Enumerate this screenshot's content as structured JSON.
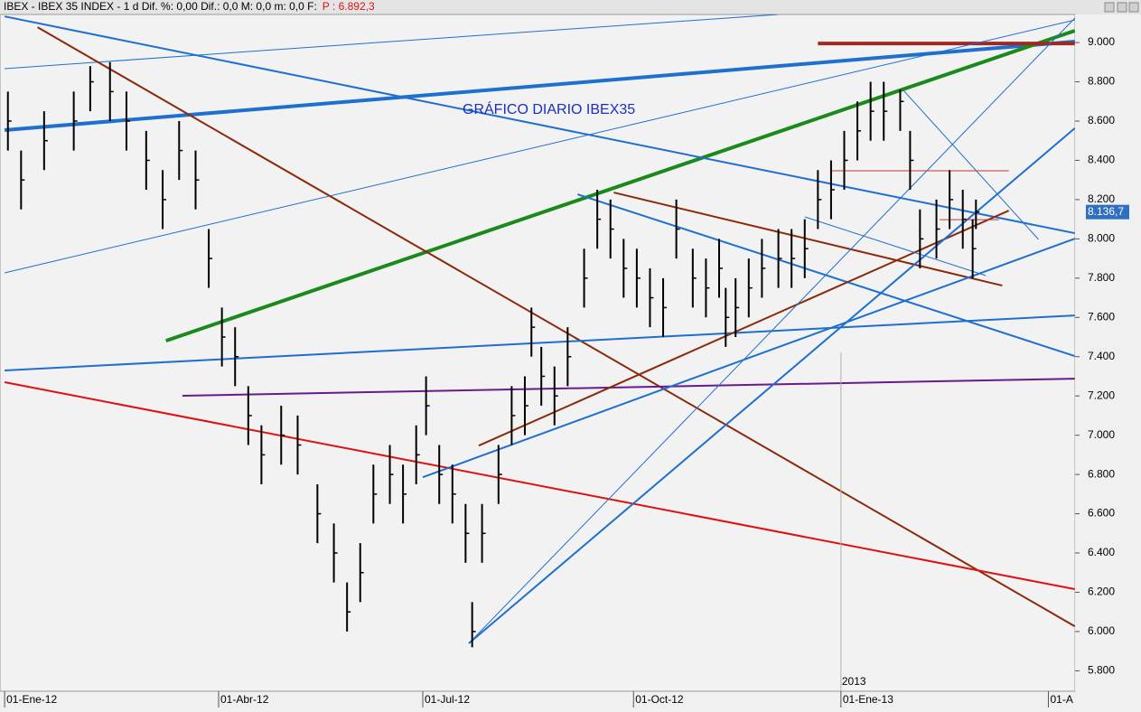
{
  "chart_data": {
    "type": "ohlc",
    "title": "IBEX - IBEX 35 INDEX - 1 d Dif. %: 0,00 Dif.: 0,0 M: 0,0 m: 0,0 F:",
    "price_label": "P : 6.892,3",
    "annotation": "GRÁFICO DIARIO IBEX35",
    "color": "#000000",
    "x": [
      1,
      5,
      12,
      21,
      26,
      32,
      37,
      43,
      48,
      53,
      58,
      62,
      66,
      70,
      74,
      78,
      84,
      89,
      95,
      100,
      104,
      108,
      112,
      117,
      121,
      125,
      128,
      132,
      136,
      140,
      142,
      145,
      150,
      154,
      158,
      160,
      163,
      167,
      171,
      176,
      180,
      184,
      188,
      192,
      196,
      200,
      204,
      209,
      213,
      217,
      219,
      222,
      226,
      230,
      235,
      239,
      243,
      247,
      251,
      255,
      259,
      263,
      267,
      272,
      275,
      278,
      283,
      287,
      291,
      294,
      295
    ],
    "high": [
      8750,
      8450,
      8650,
      8750,
      8880,
      8900,
      8750,
      8550,
      8350,
      8600,
      8450,
      8050,
      7650,
      7550,
      7250,
      7050,
      7150,
      7100,
      6750,
      6550,
      6250,
      6450,
      6850,
      6950,
      6850,
      7050,
      7300,
      6950,
      6850,
      6650,
      6150,
      6650,
      6950,
      7250,
      7300,
      7650,
      7450,
      7350,
      7550,
      7950,
      8250,
      8200,
      8000,
      7950,
      7850,
      7800,
      8200,
      7950,
      7900,
      8000,
      7750,
      7800,
      7900,
      8000,
      8050,
      8050,
      8100,
      8350,
      8400,
      8550,
      8700,
      8800,
      8800,
      8760,
      8550,
      8150,
      8200,
      8350,
      8250,
      8100,
      8200
    ],
    "low": [
      8450,
      8150,
      8350,
      8450,
      8650,
      8600,
      8450,
      8250,
      8050,
      8300,
      8150,
      7750,
      7350,
      7250,
      6950,
      6750,
      6850,
      6800,
      6450,
      6250,
      6000,
      6150,
      6550,
      6650,
      6550,
      6750,
      7000,
      6650,
      6550,
      6350,
      5920,
      6350,
      6650,
      6950,
      7000,
      7400,
      7150,
      7050,
      7250,
      7650,
      7950,
      7900,
      7700,
      7650,
      7550,
      7500,
      7900,
      7650,
      7600,
      7700,
      7450,
      7500,
      7600,
      7700,
      7750,
      7750,
      7800,
      8050,
      8100,
      8250,
      8400,
      8500,
      8500,
      8550,
      8250,
      7850,
      7900,
      8050,
      7950,
      7800,
      8050
    ],
    "close": [
      8600,
      8300,
      8500,
      8600,
      8800,
      8750,
      8600,
      8400,
      8200,
      8450,
      8300,
      7900,
      7500,
      7400,
      7100,
      6900,
      7000,
      6950,
      6600,
      6400,
      6100,
      6300,
      6700,
      6800,
      6700,
      6900,
      7150,
      6800,
      6700,
      6500,
      6000,
      6500,
      6800,
      7100,
      7150,
      7550,
      7300,
      7200,
      7400,
      7800,
      8100,
      8050,
      7850,
      7800,
      7700,
      7650,
      8050,
      7800,
      7750,
      7850,
      7600,
      7650,
      7750,
      7850,
      7900,
      7900,
      7950,
      8200,
      8250,
      8400,
      8550,
      8650,
      8650,
      8700,
      8400,
      8000,
      8050,
      8200,
      8100,
      7950,
      8137
    ],
    "last_value": {
      "value": 8136.7,
      "label": "8.136,7"
    },
    "year_marker": {
      "value": 254,
      "label": "2013"
    },
    "xlim": [
      -1.4,
      325.1
    ],
    "ylim": [
      5696,
      9143
    ],
    "xticks": [
      {
        "value": 0,
        "label": "01-Ene-12"
      },
      {
        "value": 65,
        "label": "01-Abr-12"
      },
      {
        "value": 127,
        "label": "01-Jul-12"
      },
      {
        "value": 191,
        "label": "01-Oct-12"
      },
      {
        "value": 254,
        "label": "01-Ene-13"
      },
      {
        "value": 317,
        "label": "01-A"
      }
    ],
    "yticks": [
      {
        "value": 5800,
        "label": "5.800"
      },
      {
        "value": 6000,
        "label": "6.000"
      },
      {
        "value": 6200,
        "label": "6.200"
      },
      {
        "value": 6400,
        "label": "6.400"
      },
      {
        "value": 6600,
        "label": "6.600"
      },
      {
        "value": 6800,
        "label": "6.800"
      },
      {
        "value": 7000,
        "label": "7.000"
      },
      {
        "value": 7200,
        "label": "7.200"
      },
      {
        "value": 7400,
        "label": "7.400"
      },
      {
        "value": 7600,
        "label": "7.600"
      },
      {
        "value": 7800,
        "label": "7.800"
      },
      {
        "value": 8000,
        "label": "8.000"
      },
      {
        "value": 8200,
        "label": "8.200"
      },
      {
        "value": 8400,
        "label": "8.400"
      },
      {
        "value": 8600,
        "label": "8.600"
      },
      {
        "value": 8800,
        "label": "8.800"
      },
      {
        "value": 9000,
        "label": "9.000"
      }
    ],
    "trendlines": [
      {
        "color": "#1f6fcf",
        "width": 4,
        "x": [
          0,
          325
        ],
        "y": [
          8554,
          9005
        ]
      },
      {
        "color": "#1a8a1a",
        "width": 4,
        "x": [
          49,
          325
        ],
        "y": [
          7481,
          9060
        ]
      },
      {
        "color": "#a0281e",
        "width": 4,
        "x": [
          247,
          325
        ],
        "y": [
          8995,
          8995
        ]
      },
      {
        "color": "#1f6fcf",
        "width": 1,
        "x": [
          0,
          235
        ],
        "y": [
          8867,
          9143
        ]
      },
      {
        "color": "#1f6fcf",
        "width": 1,
        "x": [
          0,
          325
        ],
        "y": [
          7827,
          9115
        ]
      },
      {
        "color": "#1f6fcf",
        "width": 2,
        "x": [
          0,
          325
        ],
        "y": [
          9133,
          8029
        ]
      },
      {
        "color": "#1f6fcf",
        "width": 2,
        "x": [
          174,
          325
        ],
        "y": [
          8227,
          7403
        ]
      },
      {
        "color": "#8b2a0a",
        "width": 2,
        "x": [
          10,
          325
        ],
        "y": [
          9078,
          6027
        ]
      },
      {
        "color": "#e01010",
        "width": 2,
        "x": [
          0,
          325
        ],
        "y": [
          7270,
          6216
        ]
      },
      {
        "color": "#6a1b8a",
        "width": 2,
        "x": [
          54,
          325
        ],
        "y": [
          7201,
          7288
        ]
      },
      {
        "color": "#1f6fcf",
        "width": 2,
        "x": [
          0,
          325
        ],
        "y": [
          7330,
          7610
        ]
      },
      {
        "color": "#8b2a0a",
        "width": 2,
        "x": [
          144,
          305
        ],
        "y": [
          6947,
          8144
        ]
      },
      {
        "color": "#8b2a0a",
        "width": 2,
        "x": [
          185,
          303
        ],
        "y": [
          8236,
          7762
        ]
      },
      {
        "color": "#1f6fcf",
        "width": 2,
        "x": [
          127,
          325
        ],
        "y": [
          6786,
          8001
        ]
      },
      {
        "color": "#1f6fcf",
        "width": 2,
        "x": [
          141,
          325
        ],
        "y": [
          5940,
          8563
        ]
      },
      {
        "color": "#1f6fcf",
        "width": 1,
        "x": [
          141,
          325
        ],
        "y": [
          5940,
          9124
        ]
      },
      {
        "color": "#1f6fcf",
        "width": 1,
        "x": [
          273,
          314
        ],
        "y": [
          8756,
          7997
        ]
      },
      {
        "color": "#1f6fcf",
        "width": 1,
        "x": [
          243,
          298
        ],
        "y": [
          8112,
          7813
        ]
      },
      {
        "color": "#c0392b",
        "width": 1,
        "x": [
          251,
          305
        ],
        "y": [
          8347,
          8347
        ]
      },
      {
        "color": "#c0392b",
        "width": 1,
        "x": [
          284,
          302
        ],
        "y": [
          8098,
          8098
        ]
      }
    ]
  }
}
